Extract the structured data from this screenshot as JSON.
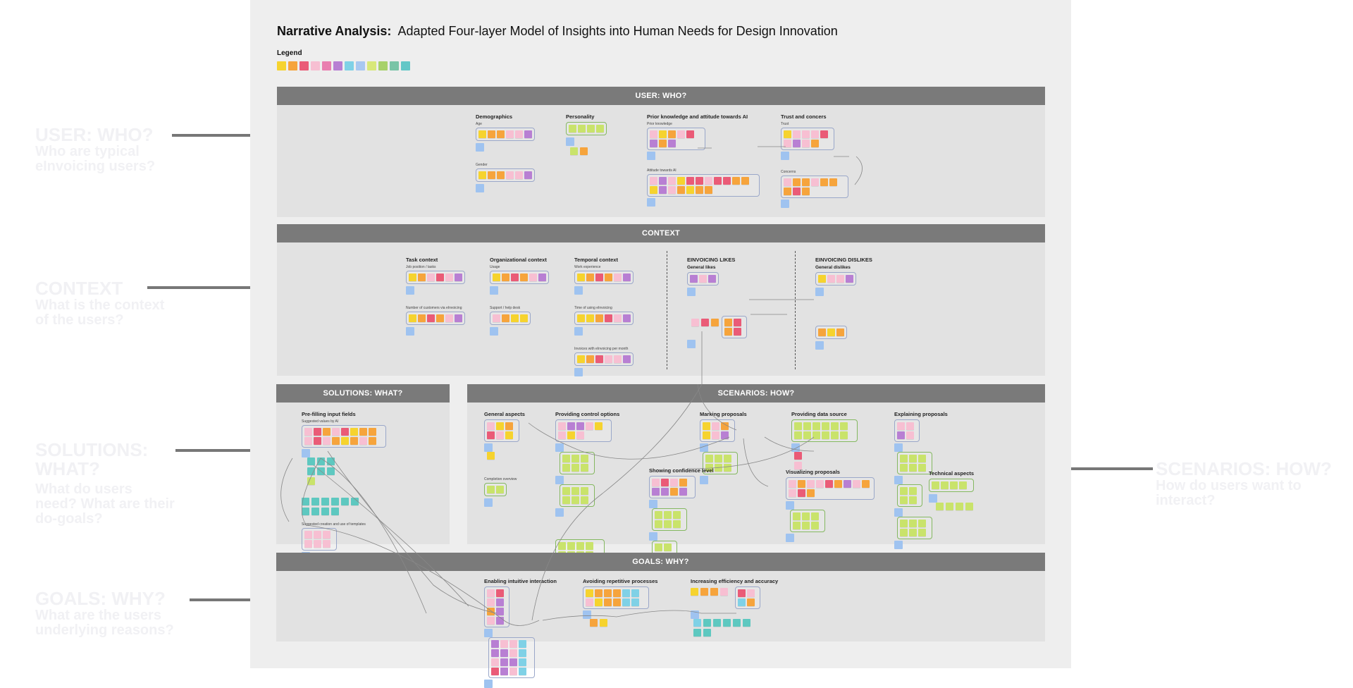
{
  "title": {
    "bold": "Narrative Analysis:",
    "rest": "Adapted Four-layer Model of Insights into Human Needs for Design Innovation"
  },
  "legend": {
    "label": "Legend",
    "colors": [
      "#f6d32e",
      "#f6a43c",
      "#ea5b77",
      "#f7bfd2",
      "#e97fb0",
      "#b87fd3",
      "#7fd1e6",
      "#a8c8f0",
      "#d8e87a",
      "#a7d16a",
      "#79c4a6",
      "#63c7c7"
    ]
  },
  "sections": {
    "user": "USER: WHO?",
    "context": "CONTEXT",
    "solutions": "SOLUTIONS: WHAT?",
    "scenarios": "SCENARIOS: HOW?",
    "goals": "GOALS: WHY?"
  },
  "side_labels": {
    "user": {
      "heading": "USER: WHO?",
      "question": "Who are typical eInvoicing users?"
    },
    "context": {
      "heading": "CONTEXT",
      "question": "What is the context of the users?"
    },
    "solutions": {
      "heading": "SOLUTIONS: WHAT?",
      "question": "What do users need? What are their do-goals?"
    },
    "goals": {
      "heading": "GOALS: WHY?",
      "question": "What are the users underlying reasons?"
    },
    "scenarios": {
      "heading": "SCENARIOS: HOW?",
      "question": "How do users want to interact?"
    }
  },
  "clusters": {
    "demographics": {
      "title": "Demographics",
      "subs": [
        "Age",
        "Gender"
      ]
    },
    "personality": {
      "title": "Personality"
    },
    "prior_knowledge": {
      "title": "Prior knowledge and attitude towards AI",
      "subs": [
        "Prior knowledge",
        "Attitude towards AI"
      ]
    },
    "trust": {
      "title": "Trust and concers",
      "subs": [
        "Trust",
        "Concerns"
      ]
    },
    "task_context": {
      "title": "Task context",
      "subs": [
        "Job position / tasks",
        "Number of customers via eInvoicing"
      ]
    },
    "org_context": {
      "title": "Organizational context",
      "subs": [
        "Usage",
        "Support / help desk"
      ]
    },
    "temporal_context": {
      "title": "Temporal context",
      "subs": [
        "Work experience",
        "Time of using eInvoicing",
        "Invoices with eInvoicing per month"
      ]
    },
    "likes": {
      "title": "EINVOICING LIKES",
      "sub_title": "General likes"
    },
    "dislikes": {
      "title": "EINVOICING DISLIKES",
      "sub_title": "General dislikes"
    },
    "prefilling": {
      "title": "Pre-filling input fields",
      "subs": [
        "Suggested values by AI",
        "Suggested creation and use of templates"
      ]
    },
    "general_aspects": {
      "title": "General aspects",
      "subs": [
        "Completion overview"
      ]
    },
    "control_options": {
      "title": "Providing control options"
    },
    "marking": {
      "title": "Marking proposals"
    },
    "data_source": {
      "title": "Providing data source"
    },
    "explaining": {
      "title": "Explaining proposals"
    },
    "confidence": {
      "title": "Showing confidence level"
    },
    "visualizing": {
      "title": "Visualizing proposals"
    },
    "technical": {
      "title": "Technical aspects"
    },
    "intuitive": {
      "title": "Enabling intuitive interaction"
    },
    "repetitive": {
      "title": "Avoiding repetitive processes"
    },
    "efficiency": {
      "title": "Increasing efficiency and accuracy"
    }
  }
}
